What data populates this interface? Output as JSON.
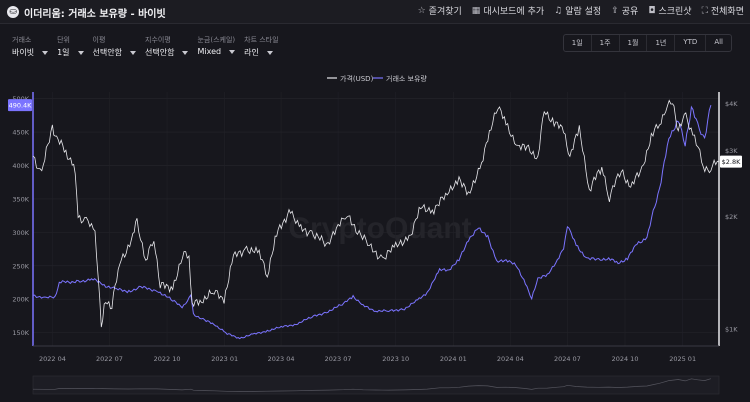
{
  "header": {
    "logo_glyph": "⛀",
    "title": "이더리움: 거래소 보유량 - 바이빗",
    "actions": [
      {
        "label": "즐겨찾기",
        "icon": "star-icon",
        "glyph": "☆"
      },
      {
        "label": "대시보드에 추가",
        "icon": "dashboard-icon",
        "glyph": "▦"
      },
      {
        "label": "알람 설정",
        "icon": "bell-icon",
        "glyph": "♫"
      },
      {
        "label": "공유",
        "icon": "share-icon",
        "glyph": "⇪"
      },
      {
        "label": "스크린샷",
        "icon": "camera-icon",
        "glyph": "◘"
      },
      {
        "label": "전체화면",
        "icon": "fullscreen-icon",
        "glyph": "⛶"
      }
    ]
  },
  "filters": [
    {
      "label": "거래소",
      "value": "바이빗"
    },
    {
      "label": "단위",
      "value": "1일"
    },
    {
      "label": "이평",
      "value": "선택안함"
    },
    {
      "label": "지수이평",
      "value": "선택안함"
    },
    {
      "label": "눈금(스케일)",
      "value": "Mixed"
    },
    {
      "label": "차트 스타일",
      "value": "라인"
    }
  ],
  "ranges": [
    "1일",
    "1주",
    "1월",
    "1년",
    "YTD",
    "All"
  ],
  "chart_data": {
    "type": "line",
    "watermark": "CryptoQuant",
    "legend": [
      "가격(USD)",
      "거래소 보유량"
    ],
    "colors": {
      "price": "#e8e8ec",
      "reserve": "#7b74ff"
    },
    "x_ticks": [
      "2022 04",
      "2022 07",
      "2022 10",
      "2023 01",
      "2023 04",
      "2023 07",
      "2023 10",
      "2024 01",
      "2024 04",
      "2024 07",
      "2024 10",
      "2025 01"
    ],
    "x_range": [
      "2022-03-01",
      "2025-02-28"
    ],
    "y_left": {
      "ticks": [
        "500K",
        "450K",
        "400K",
        "350K",
        "300K",
        "250K",
        "200K",
        "150K"
      ],
      "range": [
        130000,
        510000
      ],
      "current_label": "490.4K",
      "current": 490400
    },
    "y_right": {
      "ticks": [
        "$4K",
        "$3K",
        "$2K",
        "$1K"
      ],
      "scale": "log",
      "range": [
        900,
        4300
      ],
      "current_label": "$2.8K",
      "current": 2800
    },
    "series": [
      {
        "name": "가격(USD)",
        "axis": "right",
        "points": [
          [
            "2022-03-01",
            2900
          ],
          [
            "2022-03-15",
            2600
          ],
          [
            "2022-04-01",
            3450
          ],
          [
            "2022-04-10",
            3200
          ],
          [
            "2022-04-25",
            2900
          ],
          [
            "2022-05-05",
            2800
          ],
          [
            "2022-05-12",
            2000
          ],
          [
            "2022-05-25",
            1950
          ],
          [
            "2022-06-08",
            1800
          ],
          [
            "2022-06-18",
            1000
          ],
          [
            "2022-06-25",
            1200
          ],
          [
            "2022-07-05",
            1150
          ],
          [
            "2022-07-20",
            1550
          ],
          [
            "2022-08-05",
            1700
          ],
          [
            "2022-08-14",
            1950
          ],
          [
            "2022-08-28",
            1500
          ],
          [
            "2022-09-10",
            1750
          ],
          [
            "2022-09-20",
            1300
          ],
          [
            "2022-10-10",
            1300
          ],
          [
            "2022-10-28",
            1580
          ],
          [
            "2022-11-05",
            1550
          ],
          [
            "2022-11-10",
            1150
          ],
          [
            "2022-11-25",
            1200
          ],
          [
            "2022-12-15",
            1250
          ],
          [
            "2022-12-31",
            1200
          ],
          [
            "2023-01-15",
            1550
          ],
          [
            "2023-02-05",
            1650
          ],
          [
            "2023-02-25",
            1580
          ],
          [
            "2023-03-10",
            1400
          ],
          [
            "2023-03-25",
            1780
          ],
          [
            "2023-04-16",
            2100
          ],
          [
            "2023-04-30",
            1850
          ],
          [
            "2023-05-20",
            1820
          ],
          [
            "2023-06-15",
            1650
          ],
          [
            "2023-07-01",
            1930
          ],
          [
            "2023-07-15",
            2000
          ],
          [
            "2023-08-01",
            1850
          ],
          [
            "2023-08-20",
            1650
          ],
          [
            "2023-09-10",
            1550
          ],
          [
            "2023-10-01",
            1650
          ],
          [
            "2023-10-25",
            1800
          ],
          [
            "2023-11-10",
            2100
          ],
          [
            "2023-12-01",
            2100
          ],
          [
            "2023-12-25",
            2300
          ],
          [
            "2024-01-10",
            2550
          ],
          [
            "2024-01-25",
            2250
          ],
          [
            "2024-02-15",
            2800
          ],
          [
            "2024-03-01",
            3400
          ],
          [
            "2024-03-12",
            4000
          ],
          [
            "2024-03-25",
            3500
          ],
          [
            "2024-04-13",
            3100
          ],
          [
            "2024-04-30",
            3000
          ],
          [
            "2024-05-15",
            2900
          ],
          [
            "2024-05-25",
            3800
          ],
          [
            "2024-06-10",
            3600
          ],
          [
            "2024-06-25",
            3350
          ],
          [
            "2024-07-05",
            2900
          ],
          [
            "2024-07-20",
            3400
          ],
          [
            "2024-08-05",
            2350
          ],
          [
            "2024-08-25",
            2700
          ],
          [
            "2024-09-06",
            2250
          ],
          [
            "2024-09-25",
            2650
          ],
          [
            "2024-10-10",
            2400
          ],
          [
            "2024-10-28",
            2650
          ],
          [
            "2024-11-12",
            3300
          ],
          [
            "2024-11-25",
            3500
          ],
          [
            "2024-12-05",
            3900
          ],
          [
            "2024-12-16",
            4050
          ],
          [
            "2024-12-25",
            3400
          ],
          [
            "2025-01-06",
            3700
          ],
          [
            "2025-01-20",
            3250
          ],
          [
            "2025-02-03",
            2700
          ],
          [
            "2025-02-15",
            2700
          ],
          [
            "2025-02-28",
            2800
          ]
        ]
      },
      {
        "name": "거래소 보유량",
        "axis": "left",
        "points": [
          [
            "2022-03-01",
            206000
          ],
          [
            "2022-03-20",
            202000
          ],
          [
            "2022-04-05",
            203000
          ],
          [
            "2022-04-12",
            225000
          ],
          [
            "2022-05-15",
            227000
          ],
          [
            "2022-06-05",
            230000
          ],
          [
            "2022-06-20",
            222000
          ],
          [
            "2022-07-10",
            215000
          ],
          [
            "2022-08-01",
            212000
          ],
          [
            "2022-08-20",
            218000
          ],
          [
            "2022-09-15",
            213000
          ],
          [
            "2022-10-10",
            198000
          ],
          [
            "2022-10-25",
            188000
          ],
          [
            "2022-11-08",
            205000
          ],
          [
            "2022-11-12",
            178000
          ],
          [
            "2022-11-30",
            168000
          ],
          [
            "2022-12-15",
            163000
          ],
          [
            "2023-01-05",
            148000
          ],
          [
            "2023-01-25",
            142000
          ],
          [
            "2023-02-15",
            147000
          ],
          [
            "2023-03-10",
            153000
          ],
          [
            "2023-04-01",
            158000
          ],
          [
            "2023-04-25",
            163000
          ],
          [
            "2023-05-20",
            173000
          ],
          [
            "2023-06-15",
            182000
          ],
          [
            "2023-07-10",
            193000
          ],
          [
            "2023-07-25",
            205000
          ],
          [
            "2023-08-10",
            190000
          ],
          [
            "2023-08-30",
            183000
          ],
          [
            "2023-09-20",
            182000
          ],
          [
            "2023-10-15",
            186000
          ],
          [
            "2023-11-05",
            198000
          ],
          [
            "2023-11-20",
            210000
          ],
          [
            "2023-12-10",
            243000
          ],
          [
            "2023-12-25",
            245000
          ],
          [
            "2024-01-10",
            258000
          ],
          [
            "2024-01-25",
            290000
          ],
          [
            "2024-02-10",
            305000
          ],
          [
            "2024-02-25",
            295000
          ],
          [
            "2024-03-10",
            255000
          ],
          [
            "2024-03-25",
            260000
          ],
          [
            "2024-04-10",
            250000
          ],
          [
            "2024-04-25",
            225000
          ],
          [
            "2024-05-05",
            200000
          ],
          [
            "2024-05-15",
            232000
          ],
          [
            "2024-05-30",
            235000
          ],
          [
            "2024-06-15",
            260000
          ],
          [
            "2024-06-25",
            275000
          ],
          [
            "2024-07-01",
            312000
          ],
          [
            "2024-07-15",
            280000
          ],
          [
            "2024-08-01",
            262000
          ],
          [
            "2024-08-20",
            258000
          ],
          [
            "2024-09-05",
            262000
          ],
          [
            "2024-09-20",
            253000
          ],
          [
            "2024-10-05",
            262000
          ],
          [
            "2024-10-20",
            282000
          ],
          [
            "2024-11-05",
            293000
          ],
          [
            "2024-11-15",
            330000
          ],
          [
            "2024-11-25",
            365000
          ],
          [
            "2024-12-10",
            440000
          ],
          [
            "2024-12-25",
            470000
          ],
          [
            "2025-01-05",
            430000
          ],
          [
            "2025-01-15",
            488000
          ],
          [
            "2025-01-25",
            460000
          ],
          [
            "2025-02-05",
            440000
          ],
          [
            "2025-02-15",
            490400
          ]
        ]
      }
    ]
  }
}
